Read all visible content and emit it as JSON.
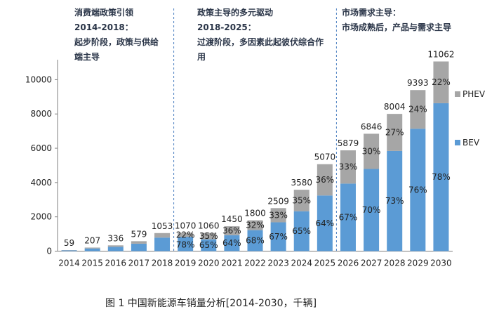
{
  "chart_data": {
    "type": "bar",
    "stacked": true,
    "categories": [
      "2014",
      "2015",
      "2016",
      "2017",
      "2018",
      "2019",
      "2020",
      "2021",
      "2022",
      "2023",
      "2024",
      "2025",
      "2026",
      "2027",
      "2028",
      "2029",
      "2030"
    ],
    "totals": [
      59,
      207,
      336,
      579,
      1053,
      1070,
      1060,
      1450,
      1800,
      2509,
      3580,
      5070,
      5879,
      6846,
      8004,
      9393,
      11062
    ],
    "series": [
      {
        "name": "BEV",
        "color": "#5b9bd5",
        "share_labels": [
          null,
          null,
          null,
          null,
          null,
          "78%",
          "65%",
          "64%",
          "68%",
          "67%",
          "65%",
          "64%",
          "67%",
          "70%",
          "73%",
          "76%",
          "78%"
        ],
        "values": [
          44,
          155,
          252,
          434,
          790,
          835,
          689,
          928,
          1224,
          1681,
          2327,
          3245,
          3939,
          4792,
          5843,
          7139,
          8628
        ]
      },
      {
        "name": "PHEV",
        "color": "#a6a6a6",
        "share_labels": [
          null,
          null,
          null,
          null,
          null,
          "22%",
          "35%",
          "36%",
          "32%",
          "33%",
          "35%",
          "36%",
          "33%",
          "30%",
          "27%",
          "24%",
          "22%"
        ],
        "values": [
          15,
          52,
          84,
          145,
          263,
          235,
          371,
          522,
          576,
          828,
          1253,
          1825,
          1940,
          2054,
          2161,
          2254,
          2434
        ]
      }
    ],
    "y_ticks": [
      "0",
      "2000",
      "4000",
      "6000",
      "8000",
      "10000"
    ],
    "ylim": [
      0,
      11000
    ],
    "grid": false,
    "legend": "right",
    "phase_dividers_after": [
      "2018",
      "2025"
    ],
    "phases": [
      {
        "lines": [
          "消费端政策引领",
          "2014-2018：",
          "起步阶段，政策与供给",
          "端主导"
        ]
      },
      {
        "lines": [
          "政策主导的多元驱动",
          "2018-2025：",
          "过渡阶段，多因素此起彼伏综合作",
          "用"
        ]
      },
      {
        "lines": [
          "市场需求主导：",
          "市场成熟后，产品与需求主导"
        ]
      }
    ],
    "caption": "图  1    中国新能源车销量分析[2014-2030，千辆]"
  }
}
